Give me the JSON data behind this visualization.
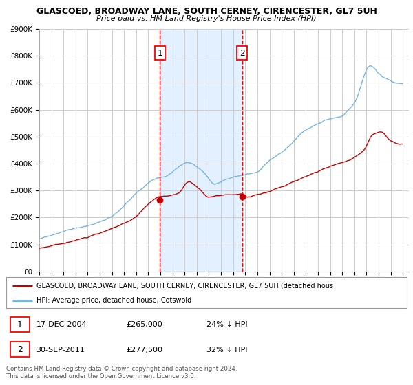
{
  "title": "GLASCOED, BROADWAY LANE, SOUTH CERNEY, CIRENCESTER, GL7 5UH",
  "subtitle": "Price paid vs. HM Land Registry's House Price Index (HPI)",
  "ylim": [
    0,
    900000
  ],
  "yticks": [
    0,
    100000,
    200000,
    300000,
    400000,
    500000,
    600000,
    700000,
    800000,
    900000
  ],
  "ytick_labels": [
    "£0",
    "£100K",
    "£200K",
    "£300K",
    "£400K",
    "£500K",
    "£600K",
    "£700K",
    "£800K",
    "£900K"
  ],
  "xlim_start": 1995.0,
  "xlim_end": 2025.5,
  "hpi_color": "#7ab3e0",
  "price_color": "#c00000",
  "sale1_x": 2004.958,
  "sale1_y": 265000,
  "sale2_x": 2011.748,
  "sale2_y": 277500,
  "vline_color": "#ff0000",
  "shade_color": "#ddeeff",
  "legend1_text": "GLASCOED, BROADWAY LANE, SOUTH CERNEY, CIRENCESTER, GL7 5UH (detached hous",
  "legend2_text": "HPI: Average price, detached house, Cotswold",
  "table_row1": [
    "1",
    "17-DEC-2004",
    "£265,000",
    "24% ↓ HPI"
  ],
  "table_row2": [
    "2",
    "30-SEP-2011",
    "£277,500",
    "32% ↓ HPI"
  ],
  "footer1": "Contains HM Land Registry data © Crown copyright and database right 2024.",
  "footer2": "This data is licensed under the Open Government Licence v3.0.",
  "background_color": "#ffffff",
  "grid_color": "#cccccc"
}
